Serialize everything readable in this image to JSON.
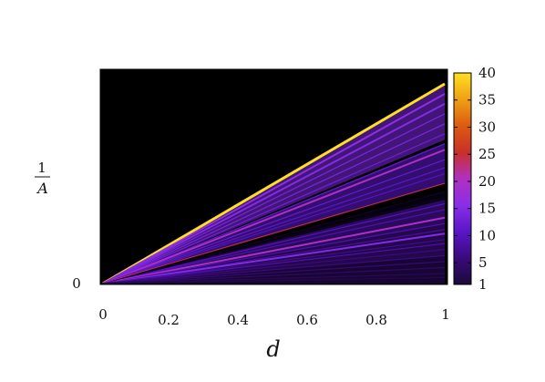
{
  "chart_data": {
    "type": "heatmap",
    "title": "",
    "xlabel": "d",
    "ylabel": "1/A",
    "ylabel_numerator": "1",
    "ylabel_denominator": "A",
    "xlim": [
      0,
      1
    ],
    "x_ticks": [
      "0",
      "0.2",
      "0.4",
      "0.6",
      "0.8",
      "1"
    ],
    "y_ticks": [
      "0"
    ],
    "background_color": "#000000",
    "colorbar": {
      "min": 1,
      "max": 40,
      "ticks": [
        "40",
        "35",
        "30",
        "25",
        "20",
        "15",
        "10",
        "5",
        "1"
      ],
      "colors": [
        "#1a0a3a",
        "#3a0a7a",
        "#5a16c8",
        "#8a2ee8",
        "#b030c0",
        "#c8302a",
        "#dc5a10",
        "#eea015",
        "#ffe020"
      ]
    },
    "ray_slopes": [
      1.0,
      0.95,
      0.9,
      0.85,
      0.8,
      0.75,
      0.7,
      0.67,
      0.62,
      0.58,
      0.55,
      0.5,
      0.46,
      0.43,
      0.4,
      0.37,
      0.33,
      0.3,
      0.27,
      0.25,
      0.22,
      0.2,
      0.17,
      0.14,
      0.11,
      0.08,
      0.05,
      0.03
    ],
    "ray_levels": [
      40,
      16,
      15,
      14,
      14,
      13,
      12,
      20,
      12,
      11,
      10,
      24,
      12,
      11,
      10,
      9,
      20,
      9,
      8,
      15,
      7,
      9,
      6,
      6,
      5,
      4,
      3,
      2
    ]
  }
}
